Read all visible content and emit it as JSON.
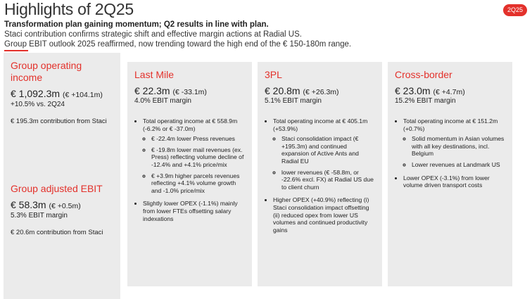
{
  "header": {
    "title": "Highlights of 2Q25",
    "badge": "2Q25",
    "subtitle": "Transformation plan gaining momentum; Q2 results in line with plan.",
    "lines": [
      "Staci contribution confirms strategic shift and effective margin actions at Radial US.",
      "Group EBIT outlook 2025 reaffirmed, now trending toward the high end of the € 150-180m range."
    ]
  },
  "summary": [
    {
      "title": "Group operating income",
      "value": "€ 1,092.3m",
      "change": "(€ +104.1m)",
      "notes": [
        "+10.5% vs. 2Q24",
        "€ 195.3m contribution from Staci"
      ]
    },
    {
      "title": "Group adjusted EBIT",
      "value": "€ 58.3m",
      "change": "(€ +0.5m)",
      "notes": [
        "5.3% EBIT margin",
        "€ 20.6m contribution from Staci"
      ]
    }
  ],
  "segments": [
    {
      "title": "Last Mile",
      "value": "€ 22.3m",
      "change": "(€ -33.1m)",
      "margin": "4.0% EBIT margin",
      "bullets": [
        {
          "text": "Total operating income at € 558.9m (-6.2% or € -37.0m)",
          "sub": [
            "€ -22.4m lower Press revenues",
            "€ -19.8m lower mail revenues (ex. Press) reflecting volume decline of -12.4% and +4.1% price/mix",
            "€ +3.9m higher parcels revenues reflecting +4.1% volume growth and -1.0% price/mix"
          ]
        },
        {
          "text": "Slightly lower OPEX (-1.1%) mainly from lower FTEs offsetting salary indexations"
        }
      ]
    },
    {
      "title": "3PL",
      "value": "€ 20.8m",
      "change": "(€ +26.3m)",
      "margin": "5.1% EBIT margin",
      "bullets": [
        {
          "text": "Total operating income at € 405.1m (+53.9%)",
          "sub": [
            "Staci consolidation impact (€ +195.3m) and continued expansion of Active Ants and Radial EU",
            "lower revenues (€ -58.8m, or -22.6% excl. FX) at Radial US due to client churn"
          ]
        },
        {
          "text": "Higher OPEX (+40.9%) reflecting (i) Staci consolidation impact offsetting (ii) reduced opex from lower US volumes and continued productivity gains"
        }
      ]
    },
    {
      "title": "Cross-border",
      "value": "€ 23.0m",
      "change": "(€ +4.7m)",
      "margin": "15.2% EBIT margin",
      "bullets": [
        {
          "text": "Total operating income at € 151.2m (+0.7%)",
          "sub": [
            "Solid momentum in Asian volumes with all key destinations, incl. Belgium",
            "Lower revenues at Landmark US"
          ]
        },
        {
          "text": "Lower OPEX (-3.1%) from lower volume driven transport costs"
        }
      ]
    }
  ]
}
